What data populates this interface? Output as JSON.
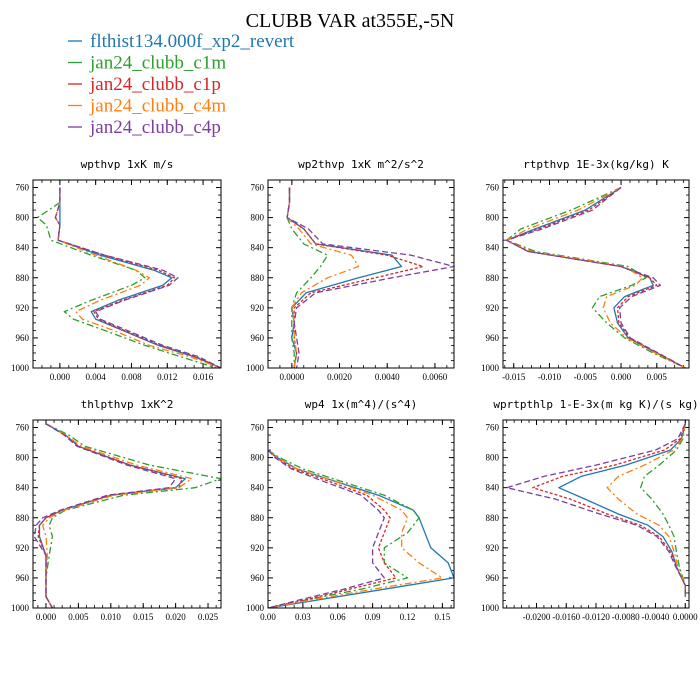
{
  "title": "CLUBB VAR at355E,-5N",
  "colors": {
    "flthist134.000f_xp2_revert": "#1f77b4",
    "jan24_clubb_c1m": "#2ca02c",
    "jan24_clubb_c1p": "#d62728",
    "jan24_clubb_c4m": "#ff7f0e",
    "jan24_clubb_c4p": "#7b3fa0"
  },
  "legend": [
    {
      "name": "flthist134.000f_xp2_revert",
      "color": "#1f77b4",
      "dash": ""
    },
    {
      "name": "jan24_clubb_c1m",
      "color": "#2ca02c",
      "dash": "7,3,2,3"
    },
    {
      "name": "jan24_clubb_c1p",
      "color": "#d62728",
      "dash": "3,2"
    },
    {
      "name": "jan24_clubb_c4m",
      "color": "#ff7f0e",
      "dash": "7,3,2,3"
    },
    {
      "name": "jan24_clubb_c4p",
      "color": "#7b3fa0",
      "dash": "6,3"
    }
  ],
  "chart_data": [
    {
      "type": "line",
      "title": "wpthvp  1xK m/s",
      "ylim": [
        1000,
        750
      ],
      "yticks": [
        760,
        800,
        840,
        880,
        920,
        960,
        1000
      ],
      "xlim": [
        -0.003,
        0.018
      ],
      "xticks": [
        0.0,
        0.004,
        0.008,
        0.012,
        0.016
      ],
      "xtick_labels": [
        "0.000",
        "0.004",
        "0.008",
        "0.012",
        "0.016"
      ],
      "y": [
        760,
        780,
        800,
        810,
        830,
        850,
        870,
        880,
        890,
        910,
        925,
        935,
        950,
        970,
        985,
        1000
      ],
      "series": [
        {
          "name": "flthist134.000f_xp2_revert",
          "values": [
            0.0,
            0.0,
            0.0,
            0.0,
            -0.0002,
            0.0045,
            0.0105,
            0.0125,
            0.0115,
            0.0065,
            0.0035,
            0.004,
            0.007,
            0.011,
            0.015,
            0.018
          ]
        },
        {
          "name": "jan24_clubb_c1m",
          "values": [
            0.0,
            0.0,
            -0.0025,
            -0.0015,
            -0.001,
            0.0035,
            0.0085,
            0.0095,
            0.008,
            0.0035,
            0.0005,
            0.0015,
            0.005,
            0.0095,
            0.0135,
            0.0175
          ]
        },
        {
          "name": "jan24_clubb_c1p",
          "values": [
            0.0,
            0.0,
            -0.0005,
            0.0,
            -0.0002,
            0.005,
            0.011,
            0.0128,
            0.012,
            0.007,
            0.0038,
            0.0043,
            0.0072,
            0.0112,
            0.0152,
            0.018
          ]
        },
        {
          "name": "jan24_clubb_c4m",
          "values": [
            0.0,
            0.0,
            -0.0005,
            0.0,
            -0.0002,
            0.004,
            0.0085,
            0.01,
            0.009,
            0.0045,
            0.0018,
            0.0025,
            0.006,
            0.01,
            0.0145,
            0.018
          ]
        },
        {
          "name": "jan24_clubb_c4p",
          "values": [
            0.0,
            0.0,
            -0.0005,
            0.0,
            -0.0002,
            0.005,
            0.0115,
            0.0132,
            0.0122,
            0.0072,
            0.004,
            0.0045,
            0.0075,
            0.0115,
            0.0155,
            0.018
          ]
        }
      ]
    },
    {
      "type": "line",
      "title": "wp2thvp  1xK m^2/s^2",
      "ylim": [
        1000,
        750
      ],
      "yticks": [
        760,
        800,
        840,
        880,
        920,
        960,
        1000
      ],
      "xlim": [
        -0.001,
        0.0068
      ],
      "xticks": [
        0.0,
        0.002,
        0.004,
        0.006
      ],
      "xtick_labels": [
        "0.0000",
        "0.0020",
        "0.0040",
        "0.0060"
      ],
      "y": [
        760,
        780,
        800,
        815,
        835,
        850,
        865,
        880,
        900,
        920,
        940,
        960,
        980,
        1000
      ],
      "series": [
        {
          "name": "flthist134.000f_xp2_revert",
          "values": [
            -0.0001,
            -0.0001,
            -0.0002,
            0.0005,
            0.001,
            0.0042,
            0.0046,
            0.0028,
            0.0006,
            0.0,
            0.0001,
            0.0,
            0.0002,
            0.0001
          ]
        },
        {
          "name": "jan24_clubb_c1m",
          "values": [
            -0.0001,
            -0.0001,
            -0.0002,
            0.0,
            0.0005,
            0.0015,
            0.0012,
            0.0008,
            0.0002,
            0.0,
            0.0,
            0.0,
            0.0001,
            0.0001
          ]
        },
        {
          "name": "jan24_clubb_c1p",
          "values": [
            -0.0001,
            -0.0001,
            -0.0002,
            0.0005,
            0.001,
            0.004,
            0.0055,
            0.0035,
            0.0008,
            0.0001,
            0.0001,
            0.0001,
            0.0002,
            0.0001
          ]
        },
        {
          "name": "jan24_clubb_c4m",
          "values": [
            -0.0001,
            -0.0001,
            -0.0002,
            0.0003,
            0.0008,
            0.0025,
            0.0028,
            0.0015,
            0.0004,
            0.0,
            0.0001,
            0.0001,
            0.0002,
            0.0001
          ]
        },
        {
          "name": "jan24_clubb_c4p",
          "values": [
            -0.0001,
            -0.0001,
            -0.0002,
            0.0007,
            0.0013,
            0.005,
            0.0068,
            0.0042,
            0.001,
            0.0002,
            0.0001,
            0.0002,
            0.0003,
            0.0002
          ]
        }
      ]
    },
    {
      "type": "line",
      "title": "rtpthvp  1E-3x(kg/kg) K",
      "ylim": [
        1000,
        750
      ],
      "yticks": [
        760,
        800,
        840,
        880,
        920,
        960,
        1000
      ],
      "xlim": [
        -0.0165,
        0.0095
      ],
      "xticks": [
        -0.015,
        -0.01,
        -0.005,
        0.0,
        0.005
      ],
      "xtick_labels": [
        "-0.015",
        "-0.010",
        "-0.005",
        "0.000",
        "0.005"
      ],
      "y": [
        760,
        790,
        815,
        830,
        845,
        865,
        880,
        890,
        905,
        920,
        940,
        960,
        980,
        1000
      ],
      "series": [
        {
          "name": "flthist134.000f_xp2_revert",
          "values": [
            0.0,
            -0.005,
            -0.012,
            -0.016,
            -0.013,
            0.0,
            0.004,
            0.0045,
            0.0005,
            -0.001,
            -0.0005,
            0.001,
            0.005,
            0.009
          ]
        },
        {
          "name": "jan24_clubb_c1m",
          "values": [
            0.0,
            -0.007,
            -0.014,
            -0.016,
            -0.012,
            0.001,
            0.0035,
            0.0015,
            -0.003,
            -0.004,
            -0.002,
            0.0005,
            0.0045,
            0.009
          ]
        },
        {
          "name": "jan24_clubb_c1p",
          "values": [
            0.0,
            -0.0045,
            -0.0115,
            -0.016,
            -0.013,
            0.0,
            0.004,
            0.005,
            0.001,
            -0.0005,
            -0.0003,
            0.0012,
            0.005,
            0.009
          ]
        },
        {
          "name": "jan24_clubb_c4m",
          "values": [
            0.0,
            -0.006,
            -0.013,
            -0.016,
            -0.0125,
            0.0005,
            0.003,
            0.002,
            -0.002,
            -0.0025,
            -0.0015,
            0.0008,
            0.0048,
            0.009
          ]
        },
        {
          "name": "jan24_clubb_c4p",
          "values": [
            0.0,
            -0.004,
            -0.011,
            -0.016,
            -0.013,
            0.0,
            0.0045,
            0.0055,
            0.0015,
            -0.0002,
            0.0,
            0.0013,
            0.0052,
            0.009
          ]
        }
      ]
    },
    {
      "type": "line",
      "title": "thlpthvp  1xK^2",
      "ylim": [
        1000,
        750
      ],
      "yticks": [
        760,
        800,
        840,
        880,
        920,
        960,
        1000
      ],
      "xlim": [
        -0.002,
        0.027
      ],
      "xticks": [
        0.0,
        0.005,
        0.01,
        0.015,
        0.02,
        0.025
      ],
      "xtick_labels": [
        "0.000",
        "0.005",
        "0.010",
        "0.015",
        "0.020",
        "0.025"
      ],
      "y": [
        755,
        770,
        785,
        810,
        828,
        840,
        850,
        870,
        880,
        890,
        905,
        930,
        960,
        985,
        1000
      ],
      "series": [
        {
          "name": "flthist134.000f_xp2_revert",
          "values": [
            0.0,
            0.003,
            0.005,
            0.013,
            0.0215,
            0.02,
            0.01,
            0.0025,
            0.0,
            -0.001,
            -0.001,
            0.0,
            0.0,
            0.0,
            0.001
          ]
        },
        {
          "name": "jan24_clubb_c1m",
          "values": [
            0.0,
            0.0035,
            0.006,
            0.016,
            0.027,
            0.023,
            0.012,
            0.003,
            0.001,
            0.0005,
            0.001,
            0.0005,
            0.0,
            0.0,
            0.001
          ]
        },
        {
          "name": "jan24_clubb_c1p",
          "values": [
            0.0,
            0.003,
            0.005,
            0.013,
            0.021,
            0.0205,
            0.01,
            0.0025,
            0.0,
            -0.001,
            -0.0012,
            0.0,
            0.0,
            0.0,
            0.001
          ]
        },
        {
          "name": "jan24_clubb_c4m",
          "values": [
            0.0,
            0.003,
            0.0055,
            0.014,
            0.0225,
            0.0205,
            0.0105,
            0.0028,
            0.0005,
            -0.0005,
            0.0,
            0.0002,
            0.0,
            0.0,
            0.001
          ]
        },
        {
          "name": "jan24_clubb_c4p",
          "values": [
            0.0,
            0.0028,
            0.0048,
            0.0125,
            0.02,
            0.019,
            0.0095,
            0.0022,
            -0.0005,
            -0.0015,
            -0.0018,
            0.0,
            0.0,
            0.0,
            0.001
          ]
        }
      ]
    },
    {
      "type": "line",
      "title": "wp4  1x(m^4)/(s^4)",
      "ylim": [
        1000,
        750
      ],
      "yticks": [
        760,
        800,
        840,
        880,
        920,
        960,
        1000
      ],
      "xlim": [
        0.0,
        0.16
      ],
      "xticks": [
        0.0,
        0.03,
        0.06,
        0.09,
        0.12,
        0.15
      ],
      "xtick_labels": [
        "0.00",
        "0.03",
        "0.06",
        "0.09",
        "0.12",
        "0.15"
      ],
      "y": [
        790,
        800,
        815,
        830,
        850,
        870,
        880,
        900,
        920,
        940,
        960,
        975,
        990,
        1000
      ],
      "series": [
        {
          "name": "flthist134.000f_xp2_revert",
          "values": [
            0.0,
            0.008,
            0.025,
            0.055,
            0.095,
            0.125,
            0.13,
            0.135,
            0.14,
            0.155,
            0.16,
            0.1,
            0.04,
            0.0
          ]
        },
        {
          "name": "jan24_clubb_c1m",
          "values": [
            0.0,
            0.01,
            0.03,
            0.06,
            0.1,
            0.125,
            0.13,
            0.12,
            0.1,
            0.1,
            0.12,
            0.08,
            0.03,
            0.0
          ]
        },
        {
          "name": "jan24_clubb_c1p",
          "values": [
            0.0,
            0.007,
            0.022,
            0.05,
            0.085,
            0.1,
            0.105,
            0.1,
            0.095,
            0.1,
            0.11,
            0.07,
            0.03,
            0.0
          ]
        },
        {
          "name": "jan24_clubb_c4m",
          "values": [
            0.0,
            0.008,
            0.025,
            0.055,
            0.09,
            0.115,
            0.12,
            0.115,
            0.115,
            0.13,
            0.15,
            0.09,
            0.035,
            0.0
          ]
        },
        {
          "name": "jan24_clubb_c4p",
          "values": [
            0.0,
            0.006,
            0.02,
            0.045,
            0.08,
            0.095,
            0.1,
            0.095,
            0.09,
            0.09,
            0.1,
            0.065,
            0.025,
            0.0
          ]
        }
      ]
    },
    {
      "type": "line",
      "title": "wprtpthlp  1-E-3x(m kg K)/(s kg)",
      "ylim": [
        1000,
        750
      ],
      "yticks": [
        760,
        800,
        840,
        880,
        920,
        960,
        1000
      ],
      "xlim": [
        -0.0245,
        0.0005
      ],
      "xticks": [
        -0.02,
        -0.016,
        -0.012,
        -0.008,
        -0.004,
        0.0
      ],
      "xtick_labels": [
        "-0.0200",
        "-0.0160",
        "-0.0120",
        "-0.0080",
        "-0.0040",
        "0.0000"
      ],
      "y": [
        755,
        775,
        790,
        810,
        825,
        840,
        855,
        875,
        890,
        905,
        925,
        945,
        960,
        970,
        985
      ],
      "series": [
        {
          "name": "flthist134.000f_xp2_revert",
          "values": [
            0.0,
            -0.0005,
            -0.002,
            -0.008,
            -0.014,
            -0.017,
            -0.0135,
            -0.009,
            -0.005,
            -0.003,
            -0.0018,
            -0.0012,
            -0.0005,
            0.0,
            0.0
          ]
        },
        {
          "name": "jan24_clubb_c1m",
          "values": [
            0.0,
            -0.0003,
            -0.0012,
            -0.0035,
            -0.0055,
            -0.006,
            -0.0045,
            -0.003,
            -0.0022,
            -0.0015,
            -0.0012,
            -0.0008,
            -0.0003,
            0.0,
            0.0
          ]
        },
        {
          "name": "jan24_clubb_c1p",
          "values": [
            0.0,
            -0.0007,
            -0.0028,
            -0.0095,
            -0.0165,
            -0.0205,
            -0.0155,
            -0.0105,
            -0.006,
            -0.0035,
            -0.002,
            -0.0012,
            -0.0005,
            0.0,
            0.0
          ]
        },
        {
          "name": "jan24_clubb_c4m",
          "values": [
            0.0,
            -0.0004,
            -0.0016,
            -0.0055,
            -0.009,
            -0.0105,
            -0.009,
            -0.0065,
            -0.0035,
            -0.0022,
            -0.0015,
            -0.001,
            -0.0004,
            0.0,
            0.0
          ]
        },
        {
          "name": "jan24_clubb_c4p",
          "values": [
            0.0,
            -0.001,
            -0.004,
            -0.012,
            -0.019,
            -0.024,
            -0.0175,
            -0.0115,
            -0.0065,
            -0.0038,
            -0.0022,
            -0.0013,
            -0.0005,
            0.0,
            0.0
          ]
        }
      ]
    }
  ]
}
